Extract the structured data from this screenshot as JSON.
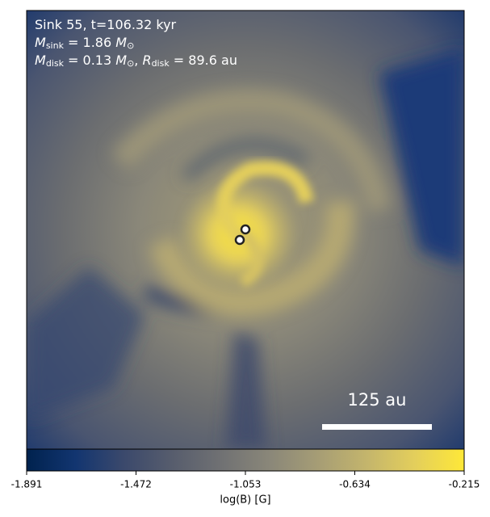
{
  "chart_data": {
    "type": "image",
    "annotations": [
      [
        {
          "text": "Sink 55, t=106.32 kyr"
        }
      ],
      [
        {
          "text": "M",
          "italic": true
        },
        {
          "text": "sink",
          "sub": true
        },
        {
          "text": " = 1.86 "
        },
        {
          "text": "M",
          "italic": true
        },
        {
          "text": "⊙",
          "sub": true
        }
      ],
      [
        {
          "text": "M",
          "italic": true
        },
        {
          "text": "disk",
          "sub": true
        },
        {
          "text": " = 0.13 "
        },
        {
          "text": "M",
          "italic": true
        },
        {
          "text": "⊙",
          "sub": true
        },
        {
          "text": ", "
        },
        {
          "text": "R",
          "italic": true
        },
        {
          "text": "disk",
          "sub": true
        },
        {
          "text": " = 89.6 au"
        }
      ]
    ],
    "scale_bar_label": "125 au",
    "colormap": "cividis",
    "clim": [
      -1.891,
      -0.215
    ],
    "cticks": [
      -1.891,
      -1.472,
      -1.053,
      -0.634,
      -0.215
    ],
    "colorbar_label": "log(B) [G]"
  }
}
